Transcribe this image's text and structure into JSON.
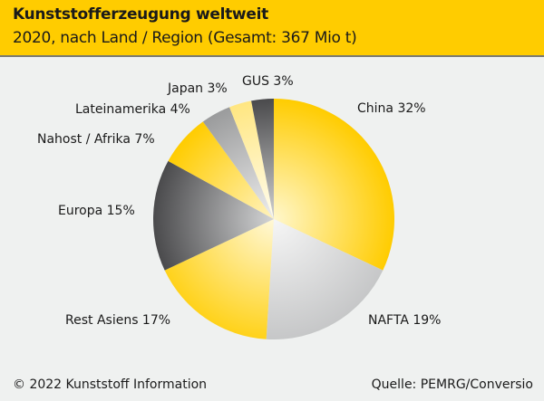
{
  "chart_data": {
    "type": "pie",
    "title": "Kunststofferzeugung weltweit",
    "subtitle": "2020, nach Land / Region (Gesamt: 367 Mio t)",
    "slices": [
      {
        "label": "China 32%",
        "name": "China",
        "value": 32,
        "color": "#ffcc00",
        "light": "#fff7cc"
      },
      {
        "label": "NAFTA 19%",
        "name": "NAFTA",
        "value": 19,
        "color": "#c6c7c8",
        "light": "#f6f6f6"
      },
      {
        "label": "Rest Asiens 17%",
        "name": "Rest Asiens",
        "value": 17,
        "color": "#ffd21a",
        "light": "#fff8d8"
      },
      {
        "label": "Europa 15%",
        "name": "Europa",
        "value": 15,
        "color": "#4a4a4c",
        "light": "#d4d5d6"
      },
      {
        "label": "Nahost / Afrika 7%",
        "name": "Nahost / Afrika",
        "value": 7,
        "color": "#ffcc00",
        "light": "#fff3c0"
      },
      {
        "label": "Lateinamerika 4%",
        "name": "Lateinamerika",
        "value": 4,
        "color": "#9a9b9c",
        "light": "#eeeeee"
      },
      {
        "label": "Japan 3%",
        "name": "Japan",
        "value": 3,
        "color": "#ffe680",
        "light": "#fffdf0"
      },
      {
        "label": "GUS 3%",
        "name": "GUS",
        "value": 3,
        "color": "#4a4a4c",
        "light": "#cfd0d1"
      }
    ]
  },
  "footer": {
    "copyright": "© 2022 Kunststoff Information",
    "source": "Quelle: PEMRG/Conversio"
  }
}
